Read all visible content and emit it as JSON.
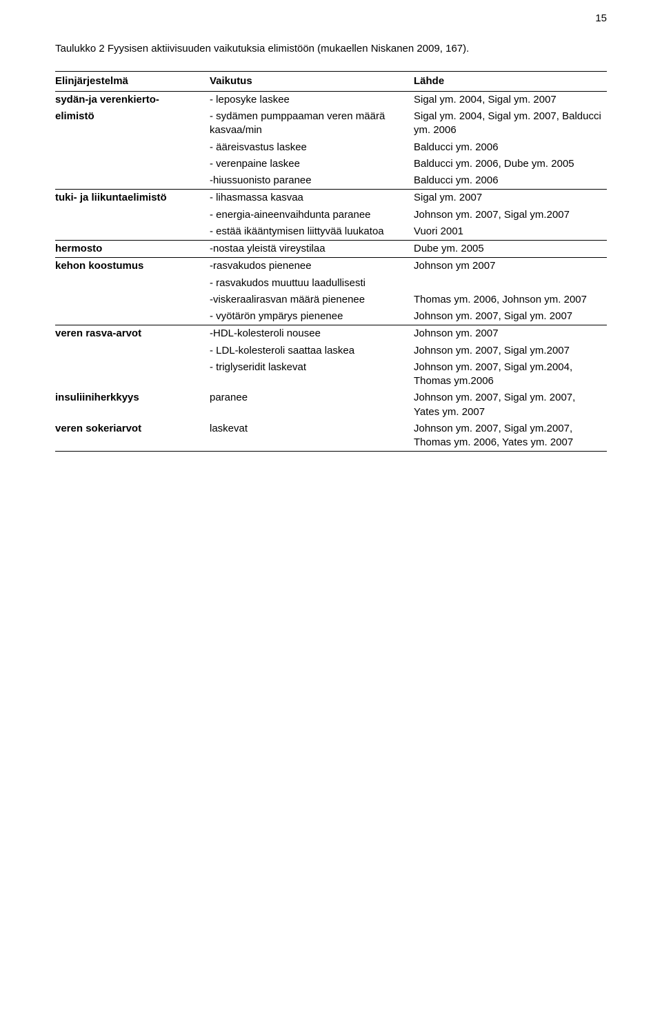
{
  "page_number": "15",
  "caption": "Taulukko 2 Fyysisen aktiivisuuden vaikutuksia elimistöön (mukaellen Niskanen 2009, 167).",
  "headers": {
    "c1": "Elinjärjestelmä",
    "c2": "Vaikutus",
    "c3": "Lähde"
  },
  "sections": [
    {
      "rows": [
        {
          "c1": "sydän-ja verenkierto-",
          "c1_bold": true,
          "c2": "- leposyke laskee",
          "c3": "Sigal ym. 2004, Sigal ym. 2007"
        },
        {
          "c1": "elimistö",
          "c1_bold": true,
          "c2": "- sydämen pumppaaman veren määrä kasvaa/min",
          "c3": "Sigal ym. 2004, Sigal ym. 2007, Balducci ym. 2006"
        },
        {
          "c1": "",
          "c2": "- ääreisvastus laskee",
          "c3": "Balducci ym. 2006"
        },
        {
          "c1": "",
          "c2": "- verenpaine laskee",
          "c3": "Balducci ym. 2006, Dube ym. 2005"
        },
        {
          "c1": "",
          "c2": "-hiussuonisto paranee",
          "c3": "Balducci ym. 2006"
        }
      ]
    },
    {
      "rows": [
        {
          "c1": "tuki- ja liikuntaelimistö",
          "c1_bold": true,
          "c2": "- lihasmassa kasvaa",
          "c3": "Sigal ym. 2007"
        },
        {
          "c1": "",
          "c2": "- energia-aineenvaihdunta paranee",
          "c3": "Johnson ym. 2007, Sigal ym.2007"
        },
        {
          "c1": "",
          "c2": "- estää ikääntymisen liittyvää luukatoa",
          "c3": "Vuori 2001"
        }
      ]
    },
    {
      "rows": [
        {
          "c1": "hermosto",
          "c1_bold": true,
          "c2": "-nostaa yleistä vireystilaa",
          "c3": "Dube ym. 2005"
        }
      ]
    },
    {
      "rows": [
        {
          "c1": "kehon koostumus",
          "c1_bold": true,
          "c2": "-rasvakudos pienenee",
          "c3": "Johnson ym 2007"
        },
        {
          "c1": "",
          "c2": "- rasvakudos muuttuu laadullisesti",
          "c3": ""
        },
        {
          "c1": "",
          "c2": "-viskeraalirasvan määrä pienenee",
          "c3": "Thomas ym. 2006, Johnson ym. 2007"
        },
        {
          "c1": "",
          "c2": "- vyötärön ympärys pienenee",
          "c3": "Johnson ym. 2007, Sigal ym. 2007"
        }
      ]
    },
    {
      "rows": [
        {
          "c1": "veren rasva-arvot",
          "c1_bold": true,
          "c2": "-HDL-kolesteroli nousee",
          "c3": "Johnson ym. 2007"
        },
        {
          "c1": "",
          "c2": "- LDL-kolesteroli saattaa laskea",
          "c3": "Johnson ym. 2007, Sigal ym.2007"
        },
        {
          "c1": "",
          "c2": "- triglyseridit laskevat",
          "c3": "Johnson ym. 2007, Sigal ym.2004, Thomas ym.2006"
        },
        {
          "c1": "insuliiniherkkyys",
          "c1_bold": true,
          "c2": "paranee",
          "c3": " Johnson ym. 2007, Sigal ym. 2007, Yates ym. 2007"
        },
        {
          "c1": "veren sokeriarvot",
          "c1_bold": true,
          "c2": "laskevat",
          "c3": "Johnson ym. 2007, Sigal ym.2007, Thomas ym. 2006, Yates ym. 2007"
        }
      ]
    }
  ]
}
